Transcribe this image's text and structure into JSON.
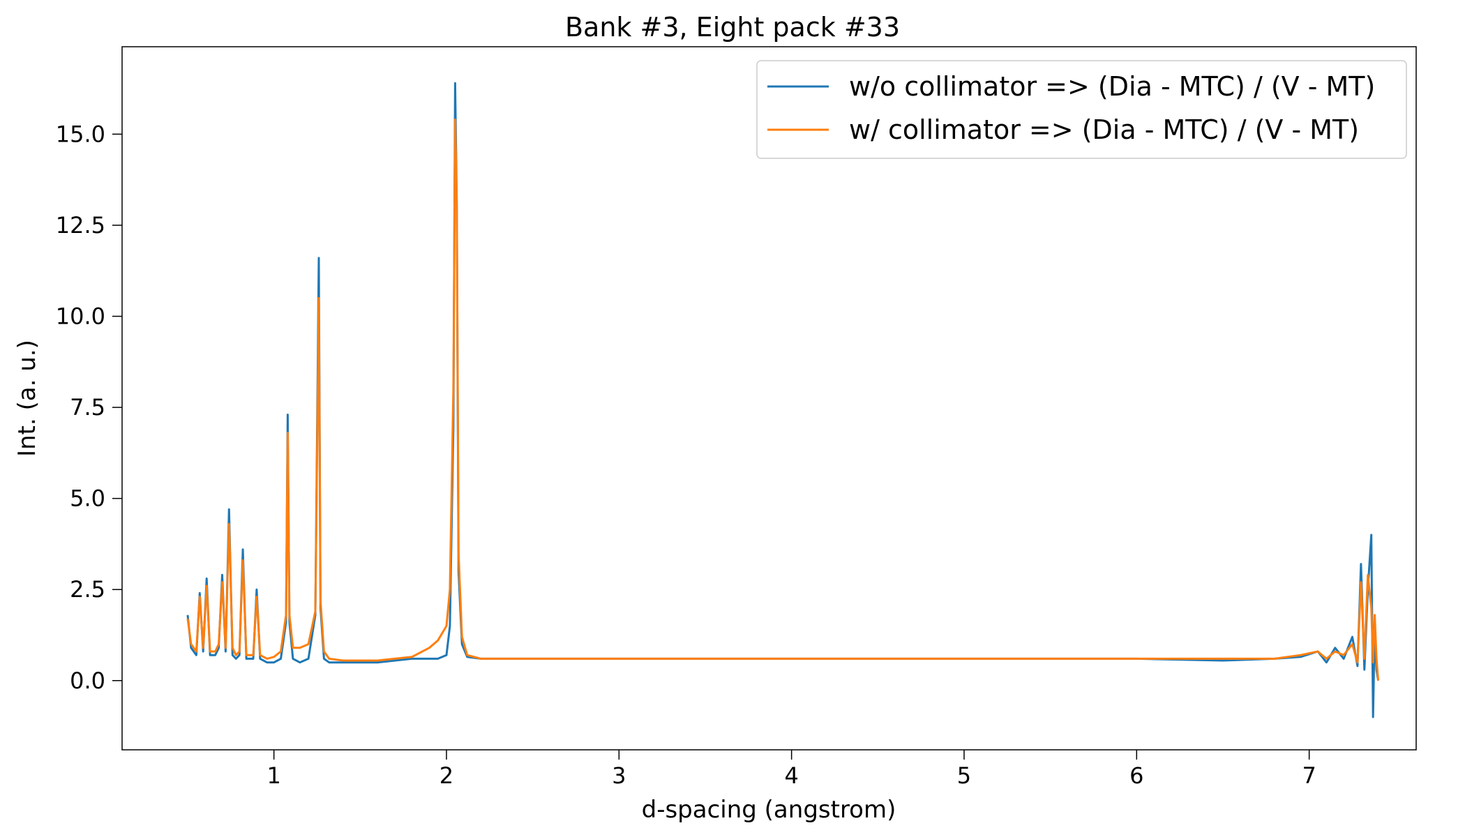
{
  "chart_data": {
    "type": "line",
    "title": "Bank #3, Eight pack #33",
    "xlabel": "d-spacing (angstrom)",
    "ylabel": "Int. (a. u.)",
    "xlim": [
      0.12,
      7.62
    ],
    "ylim": [
      -1.9,
      17.4
    ],
    "xticks": [
      1,
      2,
      3,
      4,
      5,
      6,
      7
    ],
    "xtick_labels": [
      "1",
      "2",
      "3",
      "4",
      "5",
      "6",
      "7"
    ],
    "yticks": [
      0.0,
      2.5,
      5.0,
      7.5,
      10.0,
      12.5,
      15.0
    ],
    "ytick_labels": [
      "0.0",
      "2.5",
      "5.0",
      "7.5",
      "10.0",
      "12.5",
      "15.0"
    ],
    "grid": false,
    "legend_position": "top-right",
    "colors": {
      "series1": "#1f77b4",
      "series2": "#ff7f0e"
    },
    "series": [
      {
        "name": "w/o collimator => (Dia - MTC) / (V - MT)",
        "x": [
          0.5,
          0.52,
          0.55,
          0.57,
          0.59,
          0.61,
          0.63,
          0.66,
          0.68,
          0.7,
          0.72,
          0.74,
          0.76,
          0.78,
          0.8,
          0.82,
          0.84,
          0.86,
          0.88,
          0.9,
          0.92,
          0.96,
          1.0,
          1.04,
          1.07,
          1.08,
          1.09,
          1.11,
          1.15,
          1.2,
          1.24,
          1.26,
          1.27,
          1.29,
          1.32,
          1.4,
          1.6,
          1.8,
          1.95,
          2.0,
          2.02,
          2.04,
          2.05,
          2.06,
          2.07,
          2.09,
          2.12,
          2.2,
          2.5,
          3.0,
          3.5,
          4.0,
          4.5,
          5.0,
          5.5,
          6.0,
          6.5,
          6.8,
          6.95,
          7.05,
          7.1,
          7.15,
          7.2,
          7.25,
          7.28,
          7.3,
          7.32,
          7.34,
          7.36,
          7.37,
          7.38,
          7.39,
          7.4
        ],
        "y": [
          1.8,
          0.9,
          0.7,
          2.4,
          0.8,
          2.8,
          0.7,
          0.7,
          0.9,
          2.9,
          0.8,
          4.7,
          0.7,
          0.6,
          0.7,
          3.6,
          0.6,
          0.6,
          0.6,
          2.5,
          0.6,
          0.5,
          0.5,
          0.6,
          1.6,
          7.3,
          1.6,
          0.6,
          0.5,
          0.6,
          1.8,
          11.6,
          2.0,
          0.6,
          0.5,
          0.5,
          0.5,
          0.6,
          0.6,
          0.7,
          1.5,
          7.0,
          16.4,
          13.0,
          3.0,
          1.0,
          0.65,
          0.6,
          0.6,
          0.6,
          0.6,
          0.6,
          0.6,
          0.6,
          0.6,
          0.6,
          0.55,
          0.6,
          0.65,
          0.8,
          0.5,
          0.9,
          0.6,
          1.2,
          0.4,
          3.2,
          0.3,
          2.5,
          4.0,
          -1.0,
          1.5,
          0.3,
          0.0
        ]
      },
      {
        "name": "w/ collimator => (Dia - MTC) / (V - MT)",
        "x": [
          0.5,
          0.52,
          0.55,
          0.57,
          0.59,
          0.61,
          0.63,
          0.66,
          0.68,
          0.7,
          0.72,
          0.74,
          0.76,
          0.78,
          0.8,
          0.82,
          0.84,
          0.86,
          0.88,
          0.9,
          0.92,
          0.96,
          1.0,
          1.04,
          1.07,
          1.08,
          1.09,
          1.11,
          1.15,
          1.2,
          1.24,
          1.26,
          1.27,
          1.29,
          1.32,
          1.4,
          1.6,
          1.8,
          1.9,
          1.95,
          2.0,
          2.02,
          2.04,
          2.05,
          2.06,
          2.07,
          2.09,
          2.12,
          2.2,
          2.5,
          3.0,
          3.5,
          4.0,
          4.5,
          5.0,
          5.5,
          6.0,
          6.5,
          6.8,
          6.95,
          7.05,
          7.1,
          7.15,
          7.2,
          7.25,
          7.28,
          7.3,
          7.32,
          7.34,
          7.36,
          7.37,
          7.38,
          7.39,
          7.4
        ],
        "y": [
          1.7,
          1.0,
          0.8,
          2.3,
          0.9,
          2.6,
          0.8,
          0.8,
          1.0,
          2.7,
          0.9,
          4.3,
          0.9,
          0.7,
          0.8,
          3.3,
          0.7,
          0.7,
          0.7,
          2.3,
          0.7,
          0.6,
          0.65,
          0.8,
          1.8,
          6.8,
          1.8,
          0.9,
          0.9,
          1.0,
          1.9,
          10.5,
          2.2,
          0.8,
          0.6,
          0.55,
          0.55,
          0.65,
          0.9,
          1.1,
          1.5,
          2.5,
          8.0,
          15.4,
          13.0,
          3.5,
          1.2,
          0.7,
          0.6,
          0.6,
          0.6,
          0.6,
          0.6,
          0.6,
          0.6,
          0.6,
          0.6,
          0.6,
          0.6,
          0.7,
          0.8,
          0.6,
          0.8,
          0.7,
          1.0,
          0.5,
          2.7,
          0.6,
          2.9,
          2.0,
          0.5,
          1.8,
          0.6,
          0.0
        ]
      }
    ]
  }
}
